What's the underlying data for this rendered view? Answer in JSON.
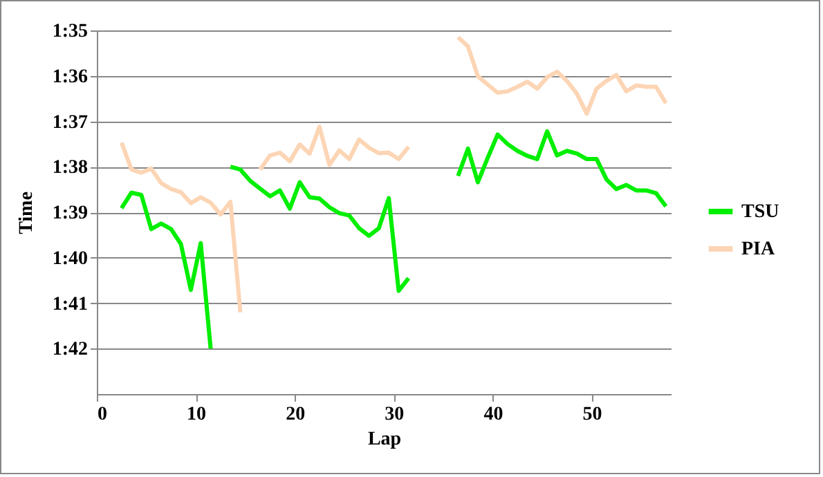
{
  "chart_data": {
    "type": "line",
    "xlabel": "Lap",
    "ylabel": "Time",
    "x": [
      2.5,
      3.5,
      4.5,
      5.5,
      6.5,
      7.5,
      8.5,
      9.5,
      10.5,
      11.5,
      12.5,
      13.5,
      14.5,
      15.5,
      16.5,
      17.5,
      18.5,
      19.5,
      20.5,
      21.5,
      22.5,
      23.5,
      24.5,
      25.5,
      26.5,
      27.5,
      28.5,
      29.5,
      30.5,
      31.5,
      32.5,
      33.5,
      34.5,
      35.5,
      36.5,
      37.5,
      38.5,
      39.5,
      40.5,
      41.5,
      42.5,
      43.5,
      44.5,
      45.5,
      46.5,
      47.5,
      48.5,
      49.5,
      50.5,
      51.5,
      52.5,
      53.5,
      54.5,
      55.5,
      56.5,
      57.5
    ],
    "series": [
      {
        "name": "TSU",
        "color": "#00ee00",
        "values": [
          98.91,
          98.57,
          98.62,
          99.37,
          99.25,
          99.37,
          99.7,
          100.71,
          99.68,
          102.0,
          null,
          98.0,
          98.06,
          98.31,
          98.48,
          98.65,
          98.52,
          98.92,
          98.34,
          98.67,
          98.7,
          98.89,
          99.02,
          99.07,
          99.35,
          99.52,
          99.35,
          98.69,
          100.73,
          100.45,
          null,
          null,
          null,
          null,
          98.2,
          97.6,
          98.34,
          97.8,
          97.29,
          97.5,
          97.65,
          97.76,
          97.83,
          97.22,
          97.75,
          97.65,
          97.71,
          97.83,
          97.83,
          98.28,
          98.49,
          98.4,
          98.52,
          98.52,
          98.58,
          98.87
        ]
      },
      {
        "name": "PIA",
        "color": "#fcd5b5",
        "values": [
          97.47,
          98.06,
          98.13,
          98.04,
          98.36,
          98.49,
          98.56,
          98.8,
          98.67,
          98.79,
          99.05,
          98.77,
          101.2,
          null,
          98.06,
          97.75,
          97.69,
          97.88,
          97.51,
          97.71,
          97.12,
          97.96,
          97.64,
          97.83,
          97.4,
          97.58,
          97.7,
          97.69,
          97.83,
          97.56,
          null,
          null,
          null,
          null,
          95.15,
          95.35,
          96.01,
          96.19,
          96.37,
          96.34,
          96.24,
          96.13,
          96.28,
          96.03,
          95.91,
          96.11,
          96.39,
          96.83,
          96.28,
          96.11,
          95.98,
          96.34,
          96.21,
          96.24,
          96.24,
          96.6
        ]
      }
    ],
    "xlim": [
      0,
      58
    ],
    "xticks": [
      0,
      10,
      20,
      30,
      40,
      50
    ],
    "ylim": [
      103,
      95
    ],
    "yticks": [
      {
        "value": 95,
        "label": "1:35"
      },
      {
        "value": 96,
        "label": "1:36"
      },
      {
        "value": 97,
        "label": "1:37"
      },
      {
        "value": 98,
        "label": "1:38"
      },
      {
        "value": 99,
        "label": "1:39"
      },
      {
        "value": 100,
        "label": "1:40"
      },
      {
        "value": 101,
        "label": "1:41"
      },
      {
        "value": 102,
        "label": "1:42"
      }
    ],
    "grid": "y",
    "legend": "right",
    "marker": "none",
    "line_style": "solid"
  }
}
